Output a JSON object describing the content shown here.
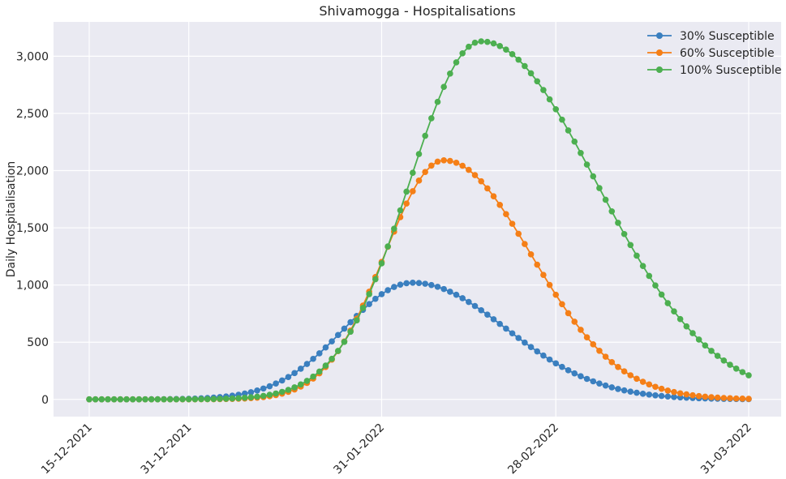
{
  "chart_data": {
    "type": "line",
    "title": "Shivamogga - Hospitalisations",
    "xlabel": "",
    "ylabel": "Daily Hospitalisation",
    "x_start": "2021-12-15",
    "x_end": "2022-03-31",
    "xticks": [
      {
        "date": "2021-12-15",
        "label": "15-12-2021"
      },
      {
        "date": "2021-12-31",
        "label": "31-12-2021"
      },
      {
        "date": "2022-01-31",
        "label": "31-01-2022"
      },
      {
        "date": "2022-02-28",
        "label": "28-02-2022"
      },
      {
        "date": "2022-03-31",
        "label": "31-03-2022"
      }
    ],
    "ylim": [
      -150,
      3300
    ],
    "yticks": [
      {
        "value": 0,
        "label": "0"
      },
      {
        "value": 500,
        "label": "500"
      },
      {
        "value": 1000,
        "label": "1,000"
      },
      {
        "value": 1500,
        "label": "1,500"
      },
      {
        "value": 2000,
        "label": "2,000"
      },
      {
        "value": 2500,
        "label": "2,500"
      },
      {
        "value": 3000,
        "label": "3,000"
      }
    ],
    "grid": true,
    "legend_position": "top-right",
    "series": [
      {
        "name": "30% Susceptible",
        "color": "#3a7fbf",
        "peak_date": "2022-02-05",
        "peak_value": 1020,
        "sigma_rise": 11,
        "sigma_fall": 15,
        "baseline": 1
      },
      {
        "name": "60% Susceptible",
        "color": "#f57f17",
        "peak_date": "2022-02-10",
        "peak_value": 2090,
        "sigma_rise": 9.5,
        "sigma_fall": 14,
        "baseline": 1
      },
      {
        "name": "100% Susceptible",
        "color": "#4caf50",
        "peak_date": "2022-02-16",
        "peak_value": 3130,
        "sigma_rise": 11.5,
        "sigma_fall": 18.5,
        "baseline": 1
      }
    ]
  }
}
